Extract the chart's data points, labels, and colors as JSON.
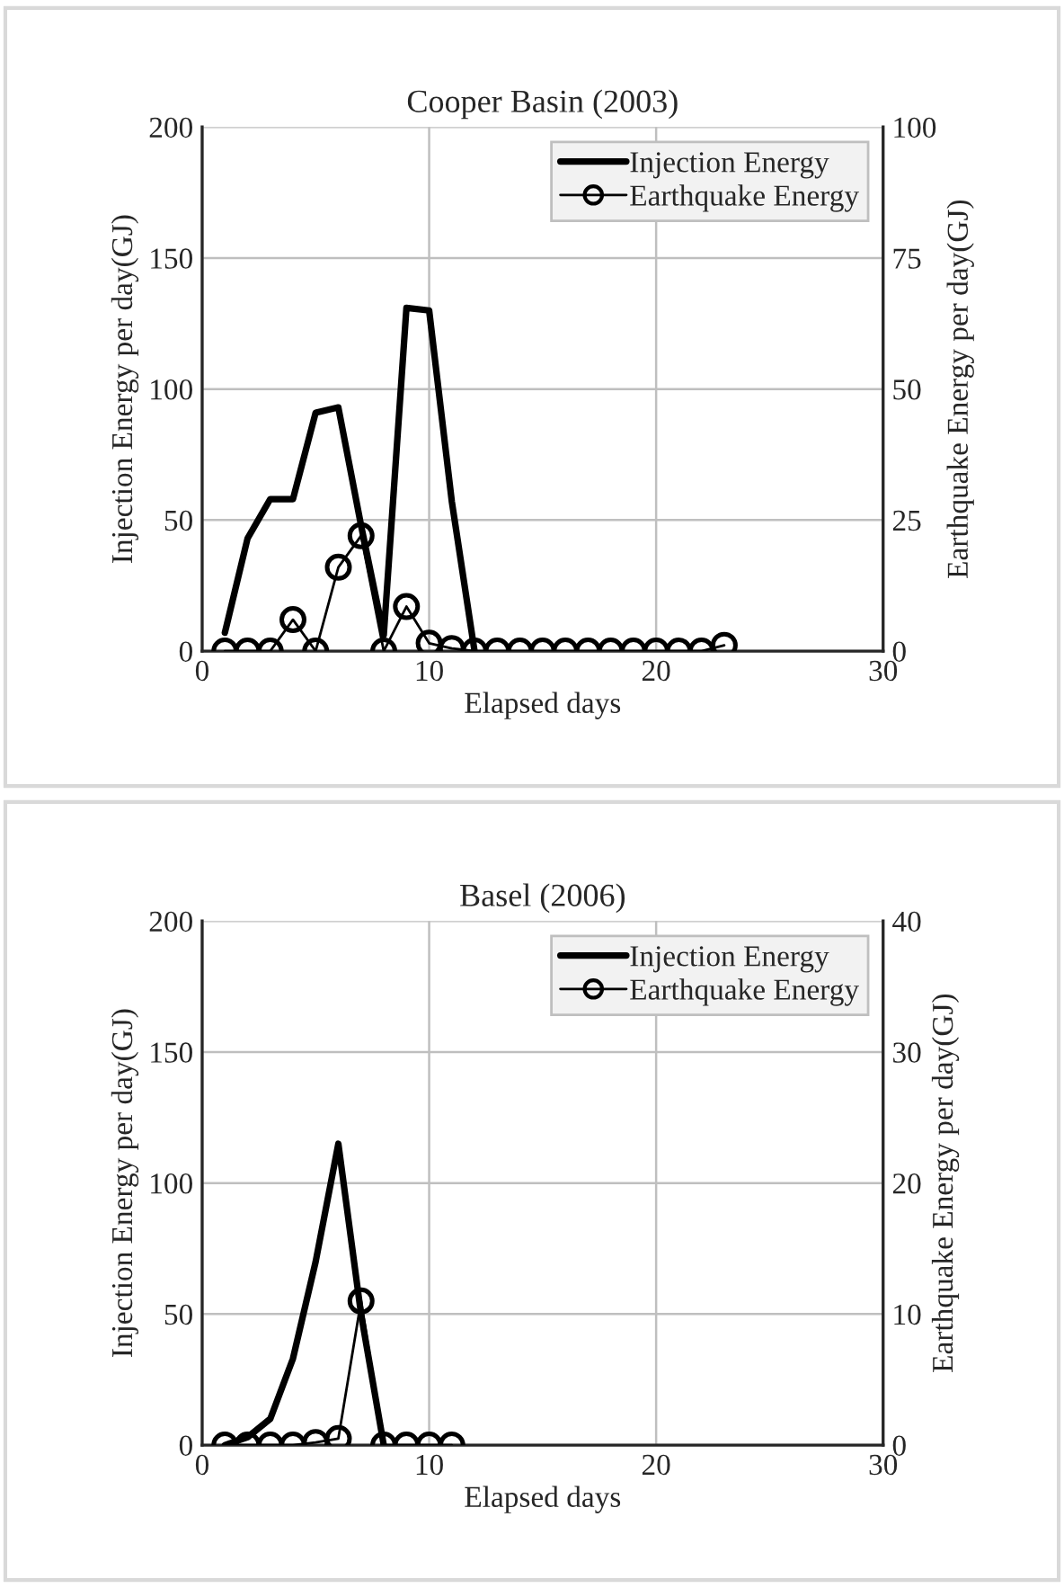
{
  "chart_data": [
    {
      "type": "line",
      "title": "Cooper Basin (2003)",
      "xlabel": "Elapsed days",
      "ylabel": "Injection Energy per day(GJ)",
      "y2label": "Earthquake Energy per day(GJ)",
      "xlim": [
        0,
        30
      ],
      "xticks": [
        0,
        10,
        20,
        30
      ],
      "ylim": [
        0,
        200
      ],
      "yticks": [
        0,
        50,
        100,
        150,
        200
      ],
      "y2lim": [
        0,
        100
      ],
      "y2ticks": [
        0,
        25,
        50,
        75,
        100
      ],
      "grid": true,
      "legend": "top right",
      "series": [
        {
          "name": "Injection Energy",
          "color": "#000000",
          "marker": "none",
          "x": [
            1,
            2,
            3,
            4,
            5,
            6,
            7,
            8,
            9,
            10,
            11,
            12
          ],
          "values": [
            7,
            43,
            58,
            58,
            91,
            93,
            48,
            6,
            131,
            130,
            57,
            0
          ]
        },
        {
          "name": "Earthquake Energy",
          "color": "#000000",
          "marker": "circle",
          "axis": "y2",
          "x": [
            1,
            2,
            3,
            4,
            5,
            6,
            7,
            8,
            9,
            10,
            11,
            12,
            13,
            14,
            15,
            16,
            17,
            18,
            19,
            20,
            21,
            22,
            23
          ],
          "values": [
            0,
            0,
            0,
            6,
            0,
            16,
            22,
            0,
            8.5,
            1.5,
            0.5,
            0,
            0,
            0,
            0,
            0,
            0,
            0,
            0,
            0,
            0,
            0,
            1.1
          ]
        }
      ]
    },
    {
      "type": "line",
      "title": "Basel (2006)",
      "xlabel": "Elapsed days",
      "ylabel": "Injection Energy per day(GJ)",
      "y2label": "Earthquake Energy per day(GJ)",
      "xlim": [
        0,
        30
      ],
      "xticks": [
        0,
        10,
        20,
        30
      ],
      "ylim": [
        0,
        200
      ],
      "yticks": [
        0,
        50,
        100,
        150,
        200
      ],
      "y2lim": [
        0,
        40
      ],
      "y2ticks": [
        0,
        10,
        20,
        30,
        40
      ],
      "grid": true,
      "legend": "top right",
      "series": [
        {
          "name": "Injection Energy",
          "color": "#000000",
          "marker": "none",
          "x": [
            1,
            2,
            3,
            4,
            5,
            6,
            7,
            8
          ],
          "values": [
            0,
            3,
            10,
            33,
            70,
            115,
            50,
            0
          ]
        },
        {
          "name": "Earthquake Energy",
          "color": "#000000",
          "marker": "circle",
          "axis": "y2",
          "x": [
            1,
            2,
            3,
            4,
            5,
            6,
            7,
            8,
            9,
            10,
            11
          ],
          "values": [
            0,
            0,
            0,
            0,
            0.2,
            0.5,
            11,
            0,
            0,
            0,
            0
          ]
        }
      ]
    }
  ]
}
